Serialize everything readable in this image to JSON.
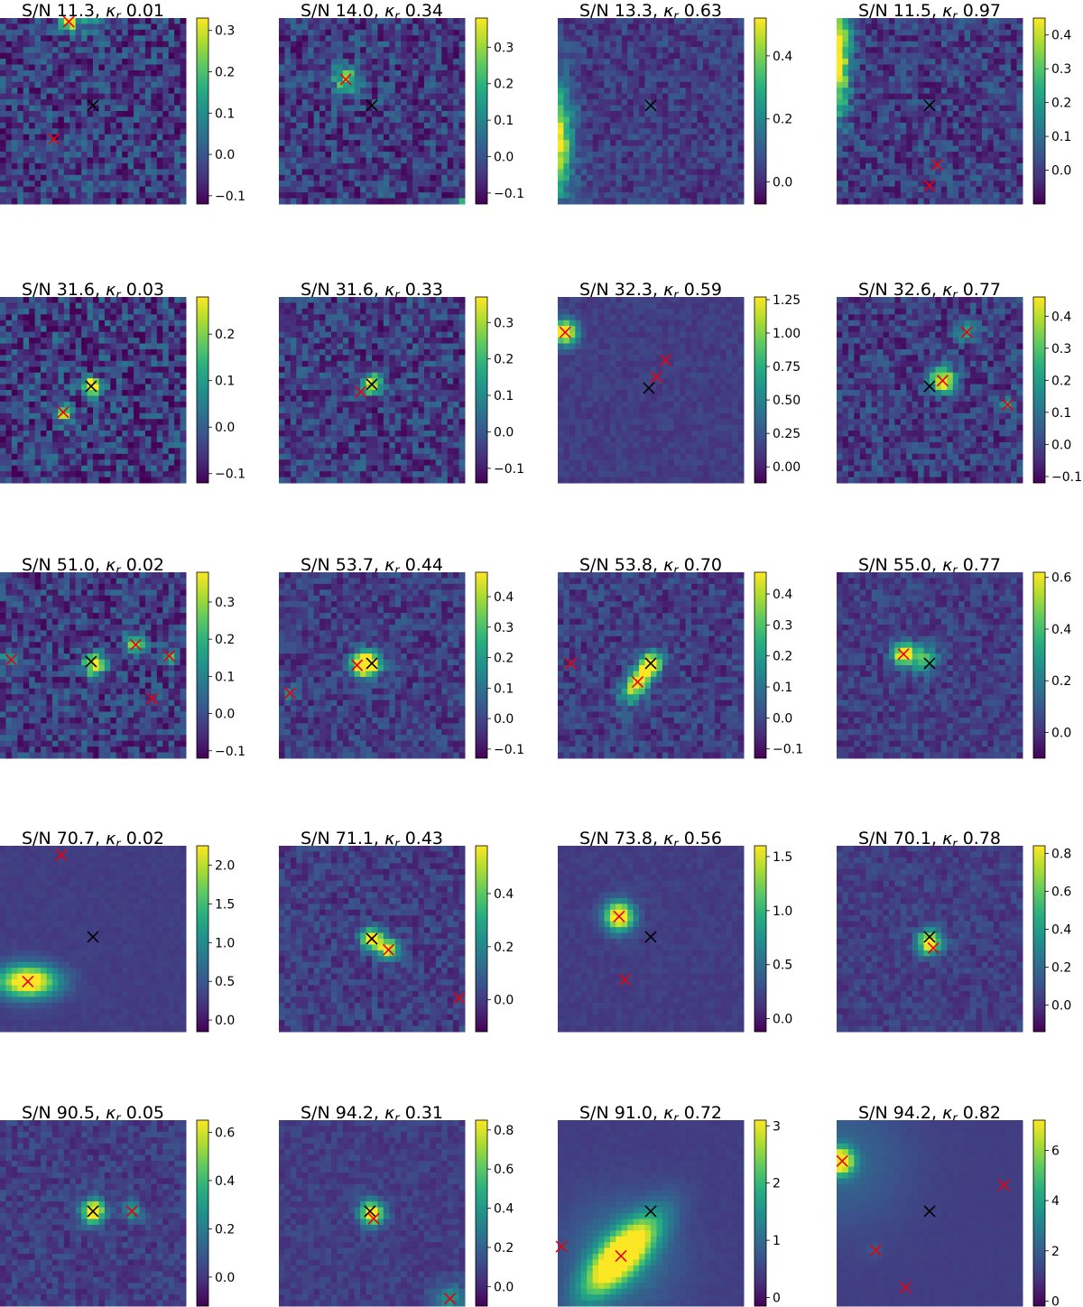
{
  "chart_data": [
    {
      "type": "heatmap",
      "title": {
        "sn": "S/N 11.3",
        "kappa_label": "κ",
        "kappa_sub": "r",
        "kappa_value": "0.01"
      },
      "colorbar": {
        "ticks": [
          "0.3",
          "0.2",
          "0.1",
          "0.0",
          "−0.1"
        ],
        "tick_values": [
          0.3,
          0.2,
          0.1,
          0.0,
          -0.1
        ],
        "range": [
          -0.12,
          0.33
        ]
      },
      "noise_level": 0.38,
      "blobs": [
        {
          "x": 0.37,
          "y": 0.02,
          "amp": 1.0,
          "s": 0.03
        },
        {
          "x": 0.5,
          "y": 0.0,
          "amp": 0.3,
          "s": 0.06
        }
      ],
      "markers": {
        "black": [
          [
            0.5,
            0.47
          ]
        ],
        "red": [
          [
            0.37,
            0.02
          ],
          [
            0.29,
            0.65
          ]
        ]
      }
    },
    {
      "type": "heatmap",
      "title": {
        "sn": "S/N 14.0",
        "kappa_label": "κ",
        "kappa_sub": "r",
        "kappa_value": "0.34"
      },
      "colorbar": {
        "ticks": [
          "0.3",
          "0.2",
          "0.1",
          "0.0",
          "−0.1"
        ],
        "tick_values": [
          0.3,
          0.2,
          0.1,
          0.0,
          -0.1
        ],
        "range": [
          -0.13,
          0.38
        ]
      },
      "noise_level": 0.35,
      "blobs": [
        {
          "x": 0.36,
          "y": 0.33,
          "amp": 0.6,
          "s": 0.05
        },
        {
          "x": 1.0,
          "y": 1.0,
          "amp": 1.0,
          "s": 0.02
        }
      ],
      "markers": {
        "black": [
          [
            0.5,
            0.47
          ]
        ],
        "red": [
          [
            0.36,
            0.33
          ]
        ]
      }
    },
    {
      "type": "heatmap",
      "title": {
        "sn": "S/N 13.3",
        "kappa_label": "κ",
        "kappa_sub": "r",
        "kappa_value": "0.63"
      },
      "colorbar": {
        "ticks": [
          "0.4",
          "0.2",
          "0.0"
        ],
        "tick_values": [
          0.4,
          0.2,
          0.0
        ],
        "range": [
          -0.07,
          0.52
        ]
      },
      "noise_level": 0.22,
      "blobs": [
        {
          "x": -0.03,
          "y": 0.66,
          "amp": 1.0,
          "s": 0.09,
          "sx": 0.07,
          "sy": 0.2
        }
      ],
      "markers": {
        "black": [
          [
            0.5,
            0.47
          ]
        ],
        "red": []
      }
    },
    {
      "type": "heatmap",
      "title": {
        "sn": "S/N 11.5",
        "kappa_label": "κ",
        "kappa_sub": "r",
        "kappa_value": "0.97"
      },
      "colorbar": {
        "ticks": [
          "0.4",
          "0.3",
          "0.2",
          "0.1",
          "0.0"
        ],
        "tick_values": [
          0.4,
          0.3,
          0.2,
          0.1,
          0.0
        ],
        "range": [
          -0.1,
          0.45
        ]
      },
      "noise_level": 0.3,
      "blobs": [
        {
          "x": 0.0,
          "y": 0.2,
          "amp": 0.95,
          "s": 0.06,
          "sx": 0.05,
          "sy": 0.22
        }
      ],
      "markers": {
        "black": [
          [
            0.5,
            0.47
          ]
        ],
        "red": [
          [
            0.54,
            0.79
          ],
          [
            0.5,
            0.9
          ]
        ]
      }
    },
    {
      "type": "heatmap",
      "title": {
        "sn": "S/N 31.6",
        "kappa_label": "κ",
        "kappa_sub": "r",
        "kappa_value": "0.03"
      },
      "colorbar": {
        "ticks": [
          "0.2",
          "0.1",
          "0.0",
          "−0.1"
        ],
        "tick_values": [
          0.2,
          0.1,
          0.0,
          -0.1
        ],
        "range": [
          -0.12,
          0.28
        ]
      },
      "noise_level": 0.42,
      "blobs": [
        {
          "x": 0.49,
          "y": 0.48,
          "amp": 0.9,
          "s": 0.035
        },
        {
          "x": 0.34,
          "y": 0.62,
          "amp": 0.7,
          "s": 0.035
        }
      ],
      "markers": {
        "black": [
          [
            0.49,
            0.48
          ]
        ],
        "red": [
          [
            0.34,
            0.62
          ]
        ]
      }
    },
    {
      "type": "heatmap",
      "title": {
        "sn": "S/N 31.6",
        "kappa_label": "κ",
        "kappa_sub": "r",
        "kappa_value": "0.33"
      },
      "colorbar": {
        "ticks": [
          "0.3",
          "0.2",
          "0.1",
          "0.0",
          "−0.1"
        ],
        "tick_values": [
          0.3,
          0.2,
          0.1,
          0.0,
          -0.1
        ],
        "range": [
          -0.14,
          0.37
        ]
      },
      "noise_level": 0.34,
      "blobs": [
        {
          "x": 0.5,
          "y": 0.47,
          "amp": 0.95,
          "s": 0.035
        }
      ],
      "markers": {
        "black": [
          [
            0.5,
            0.47
          ]
        ],
        "red": [
          [
            0.44,
            0.51
          ]
        ]
      }
    },
    {
      "type": "heatmap",
      "title": {
        "sn": "S/N 32.3",
        "kappa_label": "κ",
        "kappa_sub": "r",
        "kappa_value": "0.59"
      },
      "colorbar": {
        "ticks": [
          "1.25",
          "1.00",
          "0.75",
          "0.50",
          "0.25",
          "0.00"
        ],
        "tick_values": [
          1.25,
          1.0,
          0.75,
          0.5,
          0.25,
          0.0
        ],
        "range": [
          -0.12,
          1.27
        ]
      },
      "noise_level": 0.09,
      "blobs": [
        {
          "x": 0.04,
          "y": 0.19,
          "amp": 1.0,
          "s": 0.045
        }
      ],
      "markers": {
        "black": [
          [
            0.49,
            0.49
          ]
        ],
        "red": [
          [
            0.04,
            0.19
          ],
          [
            0.53,
            0.43
          ],
          [
            0.58,
            0.34
          ]
        ]
      }
    },
    {
      "type": "heatmap",
      "title": {
        "sn": "S/N 32.6",
        "kappa_label": "κ",
        "kappa_sub": "r",
        "kappa_value": "0.77"
      },
      "colorbar": {
        "ticks": [
          "0.4",
          "0.3",
          "0.2",
          "0.1",
          "0.0",
          "−0.1"
        ],
        "tick_values": [
          0.4,
          0.3,
          0.2,
          0.1,
          0.0,
          -0.1
        ],
        "range": [
          -0.12,
          0.46
        ]
      },
      "noise_level": 0.3,
      "blobs": [
        {
          "x": 0.57,
          "y": 0.45,
          "amp": 0.95,
          "s": 0.045
        },
        {
          "x": 0.7,
          "y": 0.19,
          "amp": 0.45,
          "s": 0.035
        },
        {
          "x": 0.92,
          "y": 0.58,
          "amp": 0.3,
          "s": 0.03
        }
      ],
      "markers": {
        "black": [
          [
            0.5,
            0.48
          ]
        ],
        "red": [
          [
            0.57,
            0.45
          ],
          [
            0.7,
            0.19
          ],
          [
            0.92,
            0.58
          ]
        ]
      }
    },
    {
      "type": "heatmap",
      "title": {
        "sn": "S/N 51.0",
        "kappa_label": "κ",
        "kappa_sub": "r",
        "kappa_value": "0.02"
      },
      "colorbar": {
        "ticks": [
          "0.3",
          "0.2",
          "0.1",
          "0.0",
          "−0.1"
        ],
        "tick_values": [
          0.3,
          0.2,
          0.1,
          0.0,
          -0.1
        ],
        "range": [
          -0.12,
          0.38
        ]
      },
      "noise_level": 0.34,
      "blobs": [
        {
          "x": 0.51,
          "y": 0.5,
          "amp": 0.95,
          "s": 0.04
        },
        {
          "x": 0.73,
          "y": 0.39,
          "amp": 0.6,
          "s": 0.04
        },
        {
          "x": 0.05,
          "y": 0.47,
          "amp": 0.4,
          "s": 0.03
        },
        {
          "x": 0.92,
          "y": 0.45,
          "amp": 0.4,
          "s": 0.03
        }
      ],
      "markers": {
        "black": [
          [
            0.49,
            0.48
          ]
        ],
        "red": [
          [
            0.73,
            0.39
          ],
          [
            0.06,
            0.47
          ],
          [
            0.91,
            0.45
          ],
          [
            0.82,
            0.68
          ]
        ]
      }
    },
    {
      "type": "heatmap",
      "title": {
        "sn": "S/N 53.7",
        "kappa_label": "κ",
        "kappa_sub": "r",
        "kappa_value": "0.44"
      },
      "colorbar": {
        "ticks": [
          "0.4",
          "0.3",
          "0.2",
          "0.1",
          "0.0",
          "−0.1"
        ],
        "tick_values": [
          0.4,
          0.3,
          0.2,
          0.1,
          0.0,
          -0.1
        ],
        "range": [
          -0.13,
          0.48
        ]
      },
      "noise_level": 0.24,
      "blobs": [
        {
          "x": 0.45,
          "y": 0.5,
          "amp": 0.95,
          "s": 0.045
        },
        {
          "x": 0.5,
          "y": 0.49,
          "amp": 0.7,
          "s": 0.04
        },
        {
          "x": 0.06,
          "y": 0.65,
          "amp": 0.3,
          "s": 0.03
        }
      ],
      "markers": {
        "black": [
          [
            0.5,
            0.49
          ]
        ],
        "red": [
          [
            0.42,
            0.5
          ],
          [
            0.06,
            0.65
          ]
        ]
      }
    },
    {
      "type": "heatmap",
      "title": {
        "sn": "S/N 53.8",
        "kappa_label": "κ",
        "kappa_sub": "r",
        "kappa_value": "0.70"
      },
      "colorbar": {
        "ticks": [
          "0.4",
          "0.3",
          "0.2",
          "0.1",
          "0.0",
          "−0.1"
        ],
        "tick_values": [
          0.4,
          0.3,
          0.2,
          0.1,
          0.0,
          -0.1
        ],
        "range": [
          -0.13,
          0.47
        ]
      },
      "noise_level": 0.24,
      "blobs": [
        {
          "x": 0.44,
          "y": 0.58,
          "amp": 0.95,
          "s": 0.05,
          "sx": 0.04,
          "sy": 0.09,
          "rot": -0.6
        },
        {
          "x": 0.5,
          "y": 0.49,
          "amp": 0.6,
          "s": 0.04
        }
      ],
      "markers": {
        "black": [
          [
            0.5,
            0.49
          ]
        ],
        "red": [
          [
            0.43,
            0.59
          ],
          [
            0.07,
            0.49
          ]
        ]
      }
    },
    {
      "type": "heatmap",
      "title": {
        "sn": "S/N 55.0",
        "kappa_label": "κ",
        "kappa_sub": "r",
        "kappa_value": "0.77"
      },
      "colorbar": {
        "ticks": [
          "0.6",
          "0.4",
          "0.2",
          "0.0"
        ],
        "tick_values": [
          0.6,
          0.4,
          0.2,
          0.0
        ],
        "range": [
          -0.1,
          0.62
        ]
      },
      "noise_level": 0.2,
      "blobs": [
        {
          "x": 0.36,
          "y": 0.44,
          "amp": 0.95,
          "s": 0.04
        },
        {
          "x": 0.47,
          "y": 0.47,
          "amp": 0.55,
          "s": 0.05
        }
      ],
      "markers": {
        "black": [
          [
            0.5,
            0.49
          ]
        ],
        "red": [
          [
            0.36,
            0.44
          ]
        ]
      }
    },
    {
      "type": "heatmap",
      "title": {
        "sn": "S/N 70.7",
        "kappa_label": "κ",
        "kappa_sub": "r",
        "kappa_value": "0.02"
      },
      "colorbar": {
        "ticks": [
          "2.0",
          "1.5",
          "1.0",
          "0.5",
          "0.0"
        ],
        "tick_values": [
          2.0,
          1.5,
          1.0,
          0.5,
          0.0
        ],
        "range": [
          -0.15,
          2.25
        ]
      },
      "noise_level": 0.04,
      "blobs": [
        {
          "x": 0.15,
          "y": 0.73,
          "amp": 1.0,
          "s": 0.06,
          "sx": 0.11,
          "sy": 0.06
        }
      ],
      "markers": {
        "black": [
          [
            0.5,
            0.49
          ]
        ],
        "red": [
          [
            0.33,
            0.05
          ],
          [
            0.15,
            0.73
          ]
        ]
      }
    },
    {
      "type": "heatmap",
      "title": {
        "sn": "S/N 71.1",
        "kappa_label": "κ",
        "kappa_sub": "r",
        "kappa_value": "0.43"
      },
      "colorbar": {
        "ticks": [
          "0.4",
          "0.2",
          "0.0"
        ],
        "tick_values": [
          0.4,
          0.2,
          0.0
        ],
        "range": [
          -0.12,
          0.58
        ]
      },
      "noise_level": 0.2,
      "blobs": [
        {
          "x": 0.5,
          "y": 0.5,
          "amp": 0.95,
          "s": 0.04
        },
        {
          "x": 0.59,
          "y": 0.56,
          "amp": 0.85,
          "s": 0.04
        }
      ],
      "markers": {
        "black": [
          [
            0.5,
            0.5
          ]
        ],
        "red": [
          [
            0.59,
            0.56
          ],
          [
            0.97,
            0.82
          ]
        ]
      }
    },
    {
      "type": "heatmap",
      "title": {
        "sn": "S/N 73.8",
        "kappa_label": "κ",
        "kappa_sub": "r",
        "kappa_value": "0.56"
      },
      "colorbar": {
        "ticks": [
          "1.5",
          "1.0",
          "0.5",
          "0.0"
        ],
        "tick_values": [
          1.5,
          1.0,
          0.5,
          0.0
        ],
        "range": [
          -0.12,
          1.6
        ]
      },
      "noise_level": 0.06,
      "blobs": [
        {
          "x": 0.33,
          "y": 0.38,
          "amp": 1.0,
          "s": 0.055
        }
      ],
      "markers": {
        "black": [
          [
            0.5,
            0.49
          ]
        ],
        "red": [
          [
            0.33,
            0.38
          ],
          [
            0.36,
            0.72
          ]
        ]
      }
    },
    {
      "type": "heatmap",
      "title": {
        "sn": "S/N 70.1",
        "kappa_label": "κ",
        "kappa_sub": "r",
        "kappa_value": "0.78"
      },
      "colorbar": {
        "ticks": [
          "0.8",
          "0.6",
          "0.4",
          "0.2",
          "0.0"
        ],
        "tick_values": [
          0.8,
          0.6,
          0.4,
          0.2,
          0.0
        ],
        "range": [
          -0.14,
          0.84
        ]
      },
      "noise_level": 0.15,
      "blobs": [
        {
          "x": 0.5,
          "y": 0.52,
          "amp": 0.95,
          "s": 0.045
        }
      ],
      "markers": {
        "black": [
          [
            0.5,
            0.49
          ]
        ],
        "red": [
          [
            0.52,
            0.55
          ]
        ]
      }
    },
    {
      "type": "heatmap",
      "title": {
        "sn": "S/N 90.5",
        "kappa_label": "κ",
        "kappa_sub": "r",
        "kappa_value": "0.05"
      },
      "colorbar": {
        "ticks": [
          "0.6",
          "0.4",
          "0.2",
          "0.0"
        ],
        "tick_values": [
          0.6,
          0.4,
          0.2,
          0.0
        ],
        "range": [
          -0.12,
          0.65
        ]
      },
      "noise_level": 0.17,
      "blobs": [
        {
          "x": 0.5,
          "y": 0.49,
          "amp": 0.95,
          "s": 0.045
        },
        {
          "x": 0.71,
          "y": 0.49,
          "amp": 0.35,
          "s": 0.04
        }
      ],
      "markers": {
        "black": [
          [
            0.5,
            0.49
          ]
        ],
        "red": [
          [
            0.71,
            0.49
          ]
        ]
      }
    },
    {
      "type": "heatmap",
      "title": {
        "sn": "S/N 94.2",
        "kappa_label": "κ",
        "kappa_sub": "r",
        "kappa_value": "0.31"
      },
      "colorbar": {
        "ticks": [
          "0.8",
          "0.6",
          "0.4",
          "0.2",
          "0.0"
        ],
        "tick_values": [
          0.8,
          0.6,
          0.4,
          0.2,
          0.0
        ],
        "range": [
          -0.1,
          0.85
        ]
      },
      "noise_level": 0.12,
      "blobs": [
        {
          "x": 0.5,
          "y": 0.5,
          "amp": 0.95,
          "s": 0.045
        },
        {
          "x": 0.92,
          "y": 0.96,
          "amp": 0.3,
          "s": 0.06
        }
      ],
      "markers": {
        "black": [
          [
            0.49,
            0.49
          ]
        ],
        "red": [
          [
            0.51,
            0.53
          ],
          [
            0.92,
            0.96
          ]
        ]
      }
    },
    {
      "type": "heatmap",
      "title": {
        "sn": "S/N 91.0",
        "kappa_label": "κ",
        "kappa_sub": "r",
        "kappa_value": "0.72"
      },
      "colorbar": {
        "ticks": [
          "3",
          "2",
          "1",
          "0"
        ],
        "tick_values": [
          3,
          2,
          1,
          0
        ],
        "range": [
          -0.15,
          3.1
        ]
      },
      "noise_level": 0.03,
      "blobs": [
        {
          "x": 0.34,
          "y": 0.73,
          "amp": 1.0,
          "s": 0.06,
          "sx": 0.07,
          "sy": 0.19,
          "rot": -0.75
        },
        {
          "x": 0.34,
          "y": 0.73,
          "amp": 0.25,
          "s": 0.2
        }
      ],
      "markers": {
        "black": [
          [
            0.5,
            0.49
          ]
        ],
        "red": [
          [
            0.34,
            0.73
          ],
          [
            0.02,
            0.68
          ]
        ]
      }
    },
    {
      "type": "heatmap",
      "title": {
        "sn": "S/N 94.2",
        "kappa_label": "κ",
        "kappa_sub": "r",
        "kappa_value": "0.82"
      },
      "colorbar": {
        "ticks": [
          "6",
          "4",
          "2",
          "0"
        ],
        "tick_values": [
          6,
          4,
          2,
          0
        ],
        "range": [
          -0.2,
          7.2
        ]
      },
      "noise_level": 0.015,
      "blobs": [
        {
          "x": 0.02,
          "y": 0.22,
          "amp": 1.0,
          "s": 0.05
        },
        {
          "x": 0.02,
          "y": 0.22,
          "amp": 0.15,
          "s": 0.25
        },
        {
          "x": 0.2,
          "y": 0.7,
          "amp": 0.08,
          "s": 0.03
        }
      ],
      "markers": {
        "black": [
          [
            0.5,
            0.49
          ]
        ],
        "red": [
          [
            0.03,
            0.22
          ],
          [
            0.9,
            0.35
          ],
          [
            0.21,
            0.7
          ],
          [
            0.37,
            0.9
          ]
        ]
      }
    }
  ]
}
